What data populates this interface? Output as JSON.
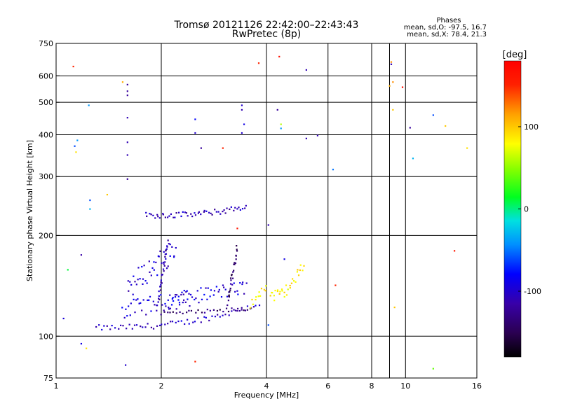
{
  "title": "Tromsø 20121126 22:42:00–22:43:43",
  "subtitle": "RwPretec (8p)",
  "phases_box": {
    "heading": "Phases",
    "line1": "mean, sd,O: -97.5, 16.7",
    "line2": "mean, sd,X:  78.4, 21.3"
  },
  "colorbar": {
    "label": "[deg]",
    "ticks": [
      {
        "value": 100,
        "label": "100"
      },
      {
        "value": 0,
        "label": "0"
      },
      {
        "value": -100,
        "label": "-100"
      }
    ],
    "range": [
      -180,
      180
    ]
  },
  "chart_data": {
    "type": "scatter",
    "xlabel": "Frequency [MHz]",
    "ylabel": "Stationary phase Virtual Height [km]",
    "xscale": "log",
    "yscale": "log",
    "xlim": [
      1,
      16
    ],
    "ylim": [
      75,
      750
    ],
    "grid": true,
    "x_ticks": [
      {
        "value": 1,
        "label": "1"
      },
      {
        "value": 2,
        "label": "2"
      },
      {
        "value": 4,
        "label": "4"
      },
      {
        "value": 6,
        "label": "6"
      },
      {
        "value": 8,
        "label": "8"
      },
      {
        "value": 10,
        "label": "10"
      },
      {
        "value": 16,
        "label": "16"
      }
    ],
    "x_grid": [
      2,
      4,
      6,
      8,
      9,
      10
    ],
    "y_ticks": [
      {
        "value": 75,
        "label": "75"
      },
      {
        "value": 100,
        "label": "100"
      },
      {
        "value": 200,
        "label": "200"
      },
      {
        "value": 300,
        "label": "300"
      },
      {
        "value": 400,
        "label": "400"
      },
      {
        "value": 500,
        "label": "500"
      },
      {
        "value": 600,
        "label": "600"
      },
      {
        "value": 750,
        "label": "750"
      }
    ],
    "y_grid": [
      100,
      200,
      300,
      400,
      500,
      600
    ],
    "traces": [
      {
        "name": "O_trace_low",
        "x0": 1.3,
        "x1": 3.8,
        "y0": 106,
        "y1": 125,
        "curve": 2.5,
        "n": 60,
        "phase": -105,
        "spread": 2
      },
      {
        "name": "O_trace_low_lower",
        "x0": 2.0,
        "x1": 3.6,
        "y0": 117,
        "y1": 121,
        "curve": 1.5,
        "n": 30,
        "phase": -135,
        "spread": 1.5
      },
      {
        "name": "O_scatter_band_2",
        "x0": 1.55,
        "x1": 2.4,
        "y0": 120,
        "y1": 130,
        "curve": 1,
        "n": 45,
        "phase": -95,
        "spread": 6
      },
      {
        "name": "O_spread_1.6_2.3",
        "x0": 1.6,
        "x1": 2.2,
        "y0": 140,
        "y1": 180,
        "curve": 1,
        "n": 40,
        "phase": -100,
        "spread": 8
      },
      {
        "name": "O_spread_2.2_3.5",
        "x0": 2.1,
        "x1": 3.5,
        "y0": 128,
        "y1": 140,
        "curve": 1,
        "n": 50,
        "phase": -95,
        "spread": 5
      },
      {
        "name": "O_vertical_2.0",
        "x0": 1.95,
        "x1": 2.1,
        "y0": 125,
        "y1": 190,
        "curve": 1,
        "n": 30,
        "phase": -110,
        "spread": 4
      },
      {
        "name": "O_vertical_3.2",
        "x0": 3.1,
        "x1": 3.3,
        "y0": 125,
        "y1": 185,
        "curve": 1,
        "n": 25,
        "phase": -140,
        "spread": 3
      },
      {
        "name": "F_layer_trace",
        "x0": 1.8,
        "x1": 3.5,
        "y0": 230,
        "y1": 245,
        "curve": 3,
        "n": 55,
        "phase": -110,
        "spread": 2
      },
      {
        "name": "X_trace",
        "x0": 4.1,
        "x1": 5.1,
        "y0": 132,
        "y1": 165,
        "curve": 2.5,
        "n": 30,
        "phase": 85,
        "spread": 4
      },
      {
        "name": "X_trace_b",
        "x0": 3.6,
        "x1": 4.0,
        "y0": 125,
        "y1": 140,
        "curve": 1,
        "n": 12,
        "phase": 80,
        "spread": 3
      }
    ],
    "points": [
      {
        "x": 1.05,
        "y": 113,
        "phase": -95
      },
      {
        "x": 1.08,
        "y": 158,
        "phase": 10
      },
      {
        "x": 1.12,
        "y": 640,
        "phase": 150
      },
      {
        "x": 1.13,
        "y": 370,
        "phase": -60
      },
      {
        "x": 1.14,
        "y": 355,
        "phase": 90
      },
      {
        "x": 1.15,
        "y": 385,
        "phase": -40
      },
      {
        "x": 1.18,
        "y": 175,
        "phase": -115
      },
      {
        "x": 1.18,
        "y": 95,
        "phase": -90
      },
      {
        "x": 1.22,
        "y": 92,
        "phase": 90
      },
      {
        "x": 1.24,
        "y": 490,
        "phase": -40
      },
      {
        "x": 1.25,
        "y": 255,
        "phase": -60
      },
      {
        "x": 1.25,
        "y": 240,
        "phase": -30
      },
      {
        "x": 1.4,
        "y": 265,
        "phase": 100
      },
      {
        "x": 1.55,
        "y": 575,
        "phase": 110
      },
      {
        "x": 1.6,
        "y": 565,
        "phase": -120
      },
      {
        "x": 1.6,
        "y": 540,
        "phase": -120
      },
      {
        "x": 1.6,
        "y": 525,
        "phase": -120
      },
      {
        "x": 1.6,
        "y": 450,
        "phase": -110
      },
      {
        "x": 1.6,
        "y": 380,
        "phase": -110
      },
      {
        "x": 1.6,
        "y": 348,
        "phase": -110
      },
      {
        "x": 1.6,
        "y": 295,
        "phase": -120
      },
      {
        "x": 1.58,
        "y": 82,
        "phase": -100
      },
      {
        "x": 2.5,
        "y": 84,
        "phase": 150
      },
      {
        "x": 2.5,
        "y": 445,
        "phase": -80
      },
      {
        "x": 2.5,
        "y": 405,
        "phase": -100
      },
      {
        "x": 2.6,
        "y": 365,
        "phase": -120
      },
      {
        "x": 3.0,
        "y": 365,
        "phase": 150
      },
      {
        "x": 3.4,
        "y": 490,
        "phase": -100
      },
      {
        "x": 3.4,
        "y": 475,
        "phase": -110
      },
      {
        "x": 3.45,
        "y": 430,
        "phase": -90
      },
      {
        "x": 3.4,
        "y": 405,
        "phase": -100
      },
      {
        "x": 3.3,
        "y": 210,
        "phase": 160
      },
      {
        "x": 3.8,
        "y": 655,
        "phase": 150
      },
      {
        "x": 4.05,
        "y": 215,
        "phase": -110
      },
      {
        "x": 4.05,
        "y": 108,
        "phase": -60
      },
      {
        "x": 4.35,
        "y": 685,
        "phase": 165
      },
      {
        "x": 4.3,
        "y": 475,
        "phase": -120
      },
      {
        "x": 4.4,
        "y": 430,
        "phase": 60
      },
      {
        "x": 4.4,
        "y": 418,
        "phase": -40
      },
      {
        "x": 4.5,
        "y": 170,
        "phase": -90
      },
      {
        "x": 5.2,
        "y": 625,
        "phase": -110
      },
      {
        "x": 5.2,
        "y": 390,
        "phase": -110
      },
      {
        "x": 5.6,
        "y": 398,
        "phase": -110
      },
      {
        "x": 6.2,
        "y": 315,
        "phase": -50
      },
      {
        "x": 6.3,
        "y": 142,
        "phase": 150
      },
      {
        "x": 9.1,
        "y": 660,
        "phase": 120
      },
      {
        "x": 9.1,
        "y": 650,
        "phase": -110
      },
      {
        "x": 9.0,
        "y": 560,
        "phase": 110
      },
      {
        "x": 9.2,
        "y": 575,
        "phase": 120
      },
      {
        "x": 9.2,
        "y": 475,
        "phase": 100
      },
      {
        "x": 9.3,
        "y": 122,
        "phase": 100
      },
      {
        "x": 9.8,
        "y": 555,
        "phase": 170
      },
      {
        "x": 10.3,
        "y": 420,
        "phase": -120
      },
      {
        "x": 10.5,
        "y": 340,
        "phase": -30
      },
      {
        "x": 12.0,
        "y": 458,
        "phase": -60
      },
      {
        "x": 12.0,
        "y": 80,
        "phase": 40
      },
      {
        "x": 13.0,
        "y": 425,
        "phase": 100
      },
      {
        "x": 13.8,
        "y": 180,
        "phase": 160
      },
      {
        "x": 15.0,
        "y": 365,
        "phase": 90
      }
    ]
  }
}
